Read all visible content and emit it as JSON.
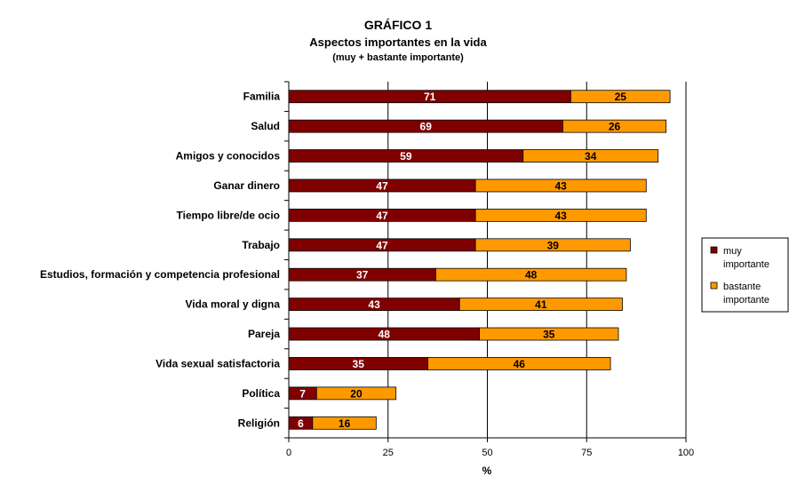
{
  "chart_data": {
    "type": "bar",
    "orientation": "horizontal",
    "stacked": true,
    "title": "GRÁFICO 1",
    "subtitle": "Aspectos importantes en la vida",
    "subsubtitle": "(muy + bastante importante)",
    "xlabel": "%",
    "ylabel": "",
    "xlim": [
      0,
      100
    ],
    "xticks": [
      0,
      25,
      50,
      75,
      100
    ],
    "grid": "vertical major lines",
    "legend_position": "right",
    "categories": [
      "Familia",
      "Salud",
      "Amigos y conocidos",
      "Ganar dinero",
      "Tiempo libre/de ocio",
      "Trabajo",
      "Estudios, formación y competencia profesional",
      "Vida moral y digna",
      "Pareja",
      "Vida sexual satisfactoria",
      "Política",
      "Religión"
    ],
    "series": [
      {
        "name": "muy importante",
        "color": "#800000",
        "label_color": "#ffffff",
        "values": [
          71,
          69,
          59,
          47,
          47,
          47,
          37,
          43,
          48,
          35,
          7,
          6
        ]
      },
      {
        "name": "bastante importante",
        "color": "#FF9900",
        "label_color": "#000000",
        "values": [
          25,
          26,
          34,
          43,
          43,
          39,
          48,
          41,
          35,
          46,
          20,
          16
        ]
      }
    ]
  }
}
